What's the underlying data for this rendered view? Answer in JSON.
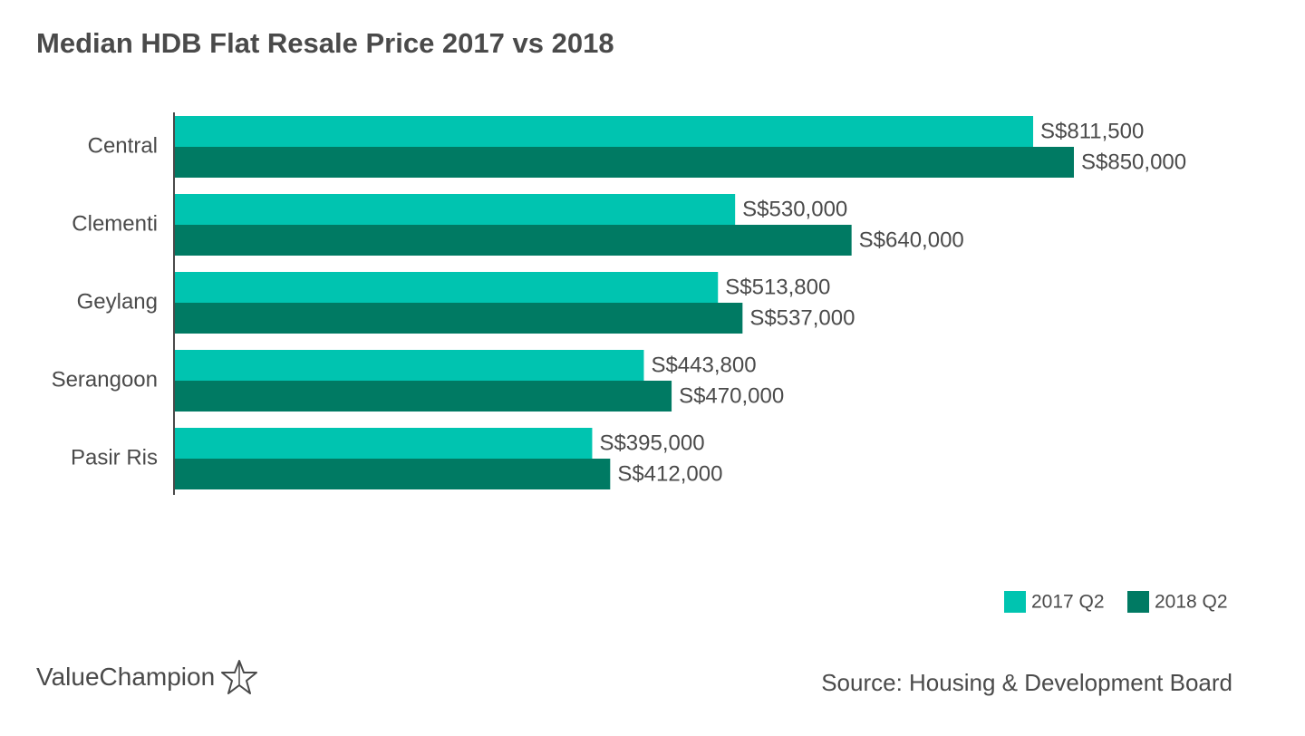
{
  "brand": {
    "name": "ValueChampion",
    "icon": "star-outline-icon"
  },
  "source": "Source: Housing & Development Board",
  "chart_data": {
    "type": "bar",
    "orientation": "horizontal",
    "title": "Median HDB Flat Resale Price 2017 vs 2018",
    "xlabel": "",
    "ylabel": "",
    "categories": [
      "Central",
      "Clementi",
      "Geylang",
      "Serangoon",
      "Pasir Ris"
    ],
    "series": [
      {
        "name": "2017 Q2",
        "color": "#00c4b0",
        "values": [
          811500,
          530000,
          513800,
          443800,
          395000
        ],
        "labels": [
          "S$811,500",
          "S$530,000",
          "S$513,800",
          "S$443,800",
          "S$395,000"
        ]
      },
      {
        "name": "2018 Q2",
        "color": "#007a63",
        "values": [
          850000,
          640000,
          537000,
          470000,
          412000
        ],
        "labels": [
          "S$850,000",
          "S$640,000",
          "S$537,000",
          "S$470,000",
          "S$412,000"
        ]
      }
    ],
    "xlim": [
      0,
      1000000
    ],
    "grid": false,
    "legend_position": "bottom-right"
  }
}
